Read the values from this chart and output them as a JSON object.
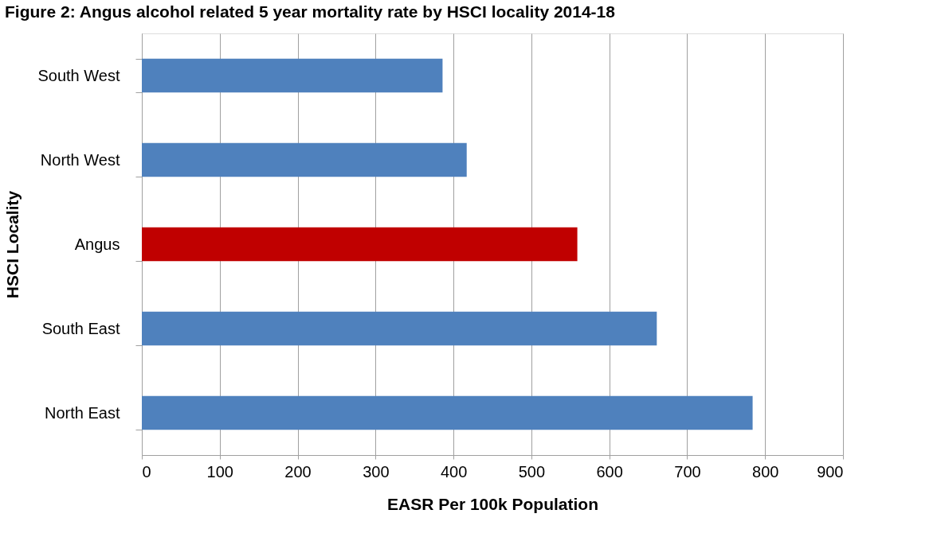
{
  "chart_data": {
    "type": "bar",
    "orientation": "horizontal",
    "title": "Figure 2: Angus alcohol related 5 year mortality rate by HSCI locality 2014-18",
    "xlabel": "EASR Per 100k Population",
    "ylabel": "HSCI Locality",
    "categories": [
      "South West",
      "North West",
      "Angus",
      "South East",
      "North East"
    ],
    "values": [
      386,
      417,
      559,
      661,
      784
    ],
    "colors": [
      "#4f81bd",
      "#4f81bd",
      "#c00000",
      "#4f81bd",
      "#4f81bd"
    ],
    "xlim": [
      0,
      900
    ],
    "xticks": [
      0,
      100,
      200,
      300,
      400,
      500,
      600,
      700,
      800,
      900
    ],
    "grid": "x",
    "legend": false
  }
}
